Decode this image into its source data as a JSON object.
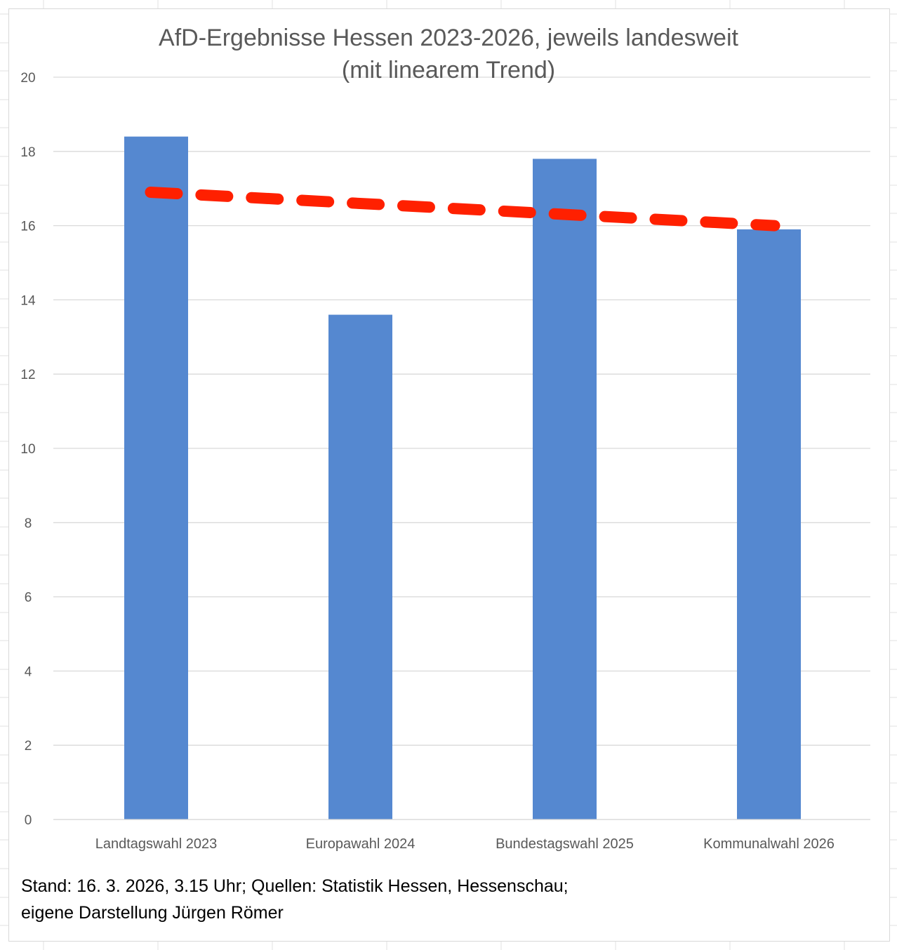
{
  "chart_data": {
    "type": "bar",
    "title_lines": [
      "AfD-Ergebnisse Hessen 2023-2026, jeweils landesweit",
      "(mit linearem Trend)"
    ],
    "categories": [
      "Landtagswahl 2023",
      "Europawahl 2024",
      "Bundestagswahl 2025",
      "Kommunalwahl 2026"
    ],
    "series": [
      {
        "name": "AfD",
        "values": [
          18.4,
          13.6,
          17.8,
          15.9
        ],
        "color": "#5588d0"
      }
    ],
    "trendline": {
      "type": "linear",
      "start": 16.9,
      "end": 16.0,
      "color": "#ff2000",
      "style": "dashed"
    },
    "xlabel": "",
    "ylabel": "",
    "ylim": [
      0,
      20
    ],
    "yticks": [
      0,
      2,
      4,
      6,
      8,
      10,
      12,
      14,
      16,
      18,
      20
    ],
    "grid": true,
    "legend": "none"
  },
  "footnote": {
    "line1": "Stand: 16. 3. 2026, 3.15 Uhr; Quellen: Statistik Hessen, Hessenschau;",
    "line2": "eigene Darstellung Jürgen Römer"
  },
  "colors": {
    "gridline": "#d9d9d9",
    "axis_text": "#595959",
    "sheet_grid": "#e2e2e2"
  }
}
